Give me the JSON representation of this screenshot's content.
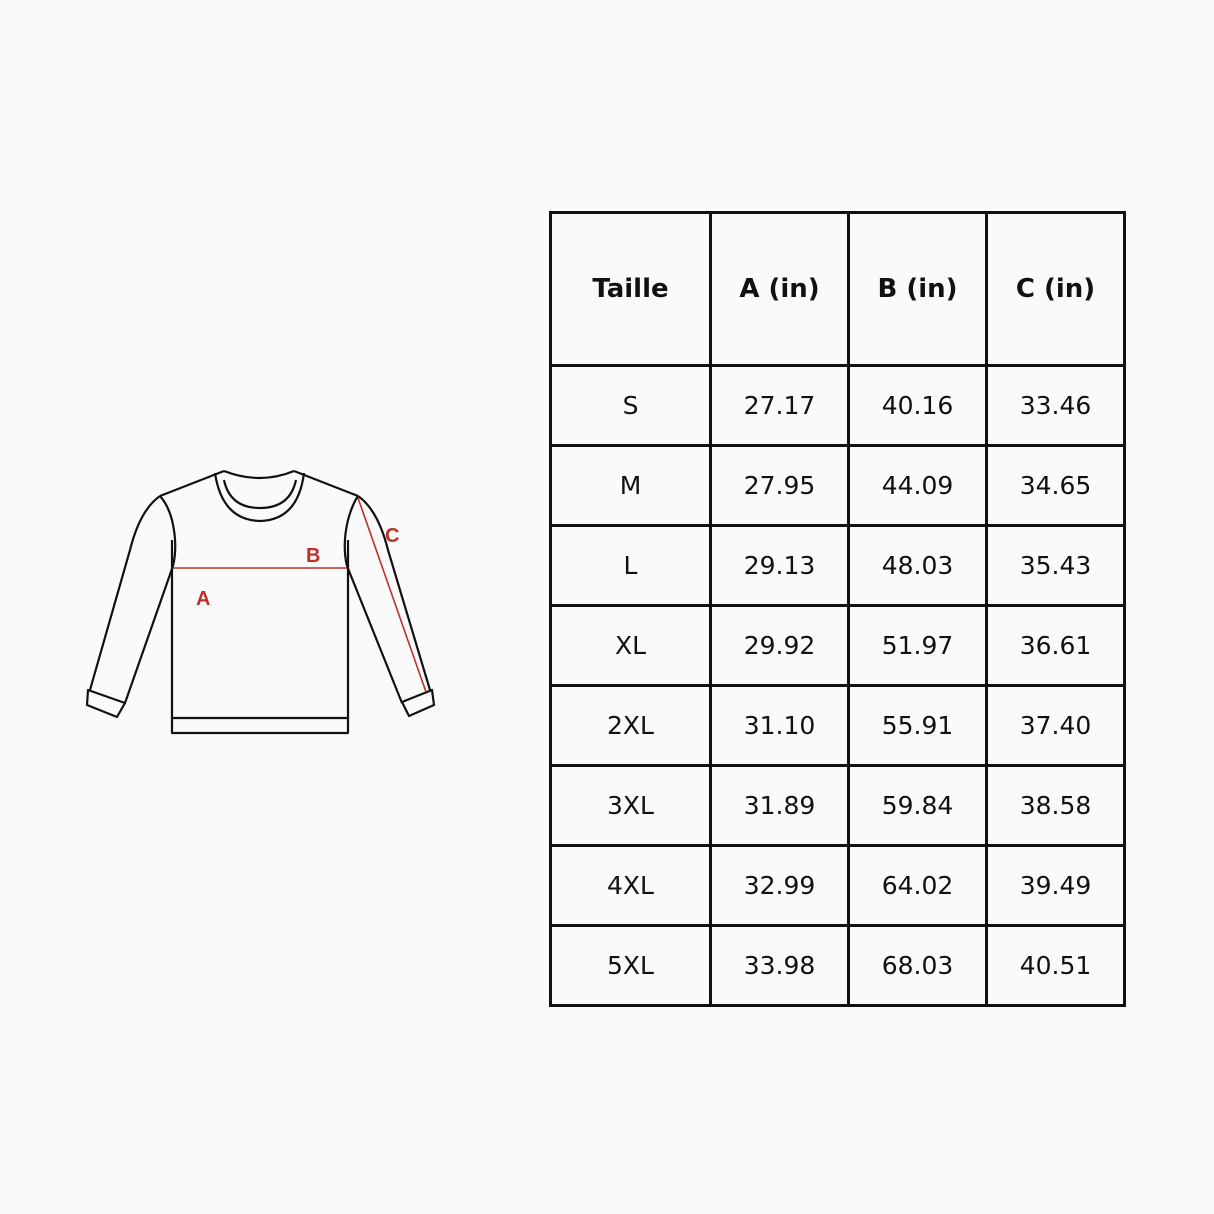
{
  "diagram": {
    "labels": {
      "a": "A",
      "b": "B",
      "c": "C"
    },
    "colors": {
      "outline": "#111111",
      "measure": "#c0302a"
    }
  },
  "table": {
    "headers": [
      "Taille",
      "A (in)",
      "B (in)",
      "C (in)"
    ],
    "rows": [
      [
        "S",
        "27.17",
        "40.16",
        "33.46"
      ],
      [
        "M",
        "27.95",
        "44.09",
        "34.65"
      ],
      [
        "L",
        "29.13",
        "48.03",
        "35.43"
      ],
      [
        "XL",
        "29.92",
        "51.97",
        "36.61"
      ],
      [
        "2XL",
        "31.10",
        "55.91",
        "37.40"
      ],
      [
        "3XL",
        "31.89",
        "59.84",
        "38.58"
      ],
      [
        "4XL",
        "32.99",
        "64.02",
        "39.49"
      ],
      [
        "5XL",
        "33.98",
        "68.03",
        "40.51"
      ]
    ]
  }
}
